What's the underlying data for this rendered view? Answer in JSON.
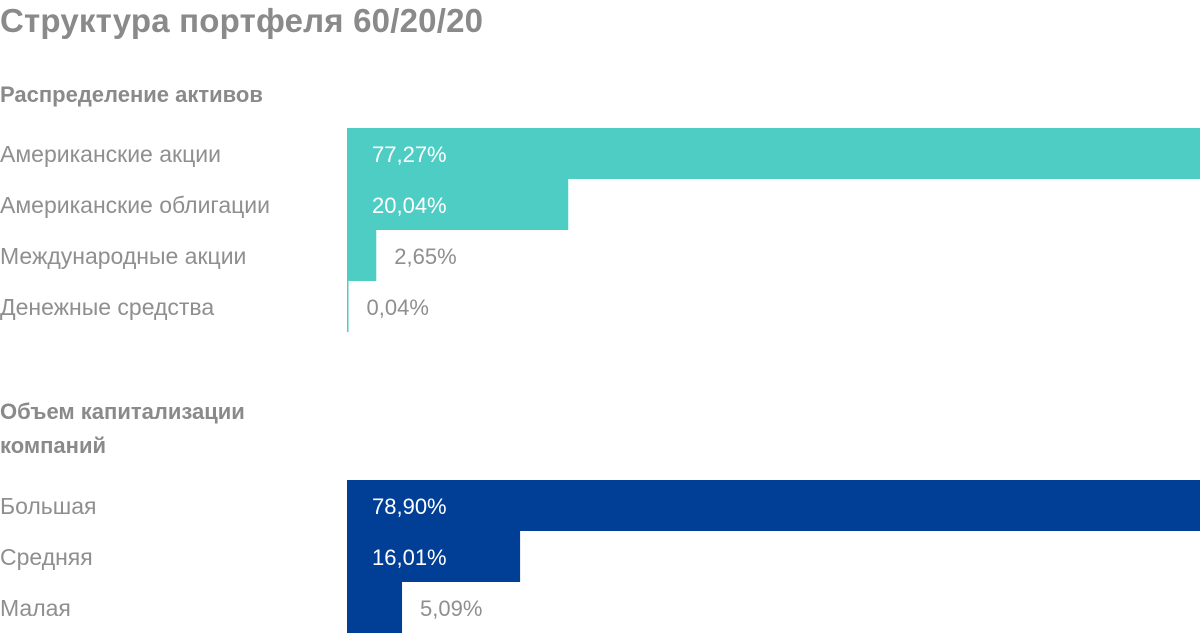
{
  "title": "Структура портфеля 60/20/20",
  "colors": {
    "assets": "#4ecdc4",
    "cap": "#003f95",
    "label_inside": "#ffffff",
    "label_outside": "#8f8f8f"
  },
  "chart_data": [
    {
      "type": "bar",
      "orientation": "horizontal",
      "title": "Распределение активов",
      "categories": [
        "Американские акции",
        "Американские облигации",
        "Международные акции",
        "Денежные средства"
      ],
      "values": [
        77.27,
        20.04,
        2.65,
        0.04
      ],
      "value_labels": [
        "77,27%",
        "20,04%",
        "2,65%",
        "0,04%"
      ],
      "unit": "%",
      "color": "#4ecdc4",
      "xlim": [
        0,
        77.27
      ]
    },
    {
      "type": "bar",
      "orientation": "horizontal",
      "title": "Объем капитализации компаний",
      "categories": [
        "Большая",
        "Средняя",
        "Малая"
      ],
      "values": [
        78.9,
        16.01,
        5.09
      ],
      "value_labels": [
        "78,90%",
        "16,01%",
        "5,09%"
      ],
      "unit": "%",
      "color": "#003f95",
      "xlim": [
        0,
        78.9
      ]
    }
  ]
}
